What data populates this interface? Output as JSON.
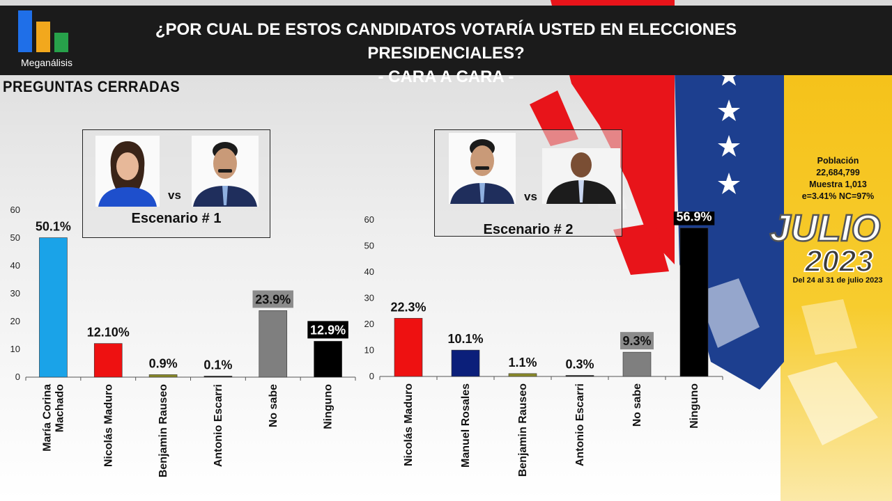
{
  "header": {
    "logo_text": "Meganálisis",
    "title_line1": "¿POR CUAL DE ESTOS CANDIDATOS VOTARÍA USTED EN ELECCIONES PRESIDENCIALES?",
    "title_line2": "- CARA A CARA -"
  },
  "subheading": "PREGUNTAS  CERRADAS",
  "scenario1": {
    "label": "Escenario # 1",
    "vs": "vs"
  },
  "scenario2": {
    "label": "Escenario # 2",
    "vs": "vs"
  },
  "info": {
    "line1": "Población",
    "line2": "22,684,799",
    "line3": "Muestra 1,013",
    "line4": "e=3.41%  NC=97%"
  },
  "badge": {
    "month": "JULIO",
    "year": "2023",
    "dates": "Del 24 al 31 de julio 2023"
  },
  "colors": {
    "machado": "#1aa3e8",
    "maduro": "#ee1111",
    "rosales": "#0b1f7a",
    "rauseo": "#8a8a2a",
    "escarri": "#1a1a1a",
    "no_sabe": "#7f7f7f",
    "ninguno": "#000000",
    "header_bg": "#1b1b1b"
  },
  "chart_data": [
    {
      "type": "bar",
      "title": "Escenario # 1",
      "categories": [
        "María Corina Machado",
        "Nicolás Maduro",
        "Benjamin Rauseo",
        "Antonio Escarri",
        "No sabe",
        "Ninguno"
      ],
      "values": [
        50.1,
        12.1,
        0.9,
        0.1,
        23.9,
        12.9
      ],
      "data_labels": [
        "50.1%",
        "12.10%",
        "0.9%",
        "0.1%",
        "23.9%",
        "12.9%"
      ],
      "colors": [
        "#1aa3e8",
        "#ee1111",
        "#8a8a2a",
        "#1a1a1a",
        "#7f7f7f",
        "#000000"
      ],
      "yticks": [
        0,
        10,
        20,
        30,
        40,
        50,
        60
      ],
      "ylim": [
        0,
        60
      ],
      "grid": false
    },
    {
      "type": "bar",
      "title": "Escenario # 2",
      "categories": [
        "Nicolás Maduro",
        "Manuel Rosales",
        "Benjamin Rauseo",
        "Antonio Escarri",
        "No sabe",
        "Ninguno"
      ],
      "values": [
        22.3,
        10.1,
        1.1,
        0.3,
        9.3,
        56.9
      ],
      "data_labels": [
        "22.3%",
        "10.1%",
        "1.1%",
        "0.3%",
        "9.3%",
        "56.9%"
      ],
      "colors": [
        "#ee1111",
        "#0b1f7a",
        "#8a8a2a",
        "#1a1a1a",
        "#7f7f7f",
        "#000000"
      ],
      "yticks": [
        0,
        10,
        20,
        30,
        40,
        50,
        60
      ],
      "ylim": [
        0,
        60
      ],
      "grid": false
    }
  ]
}
